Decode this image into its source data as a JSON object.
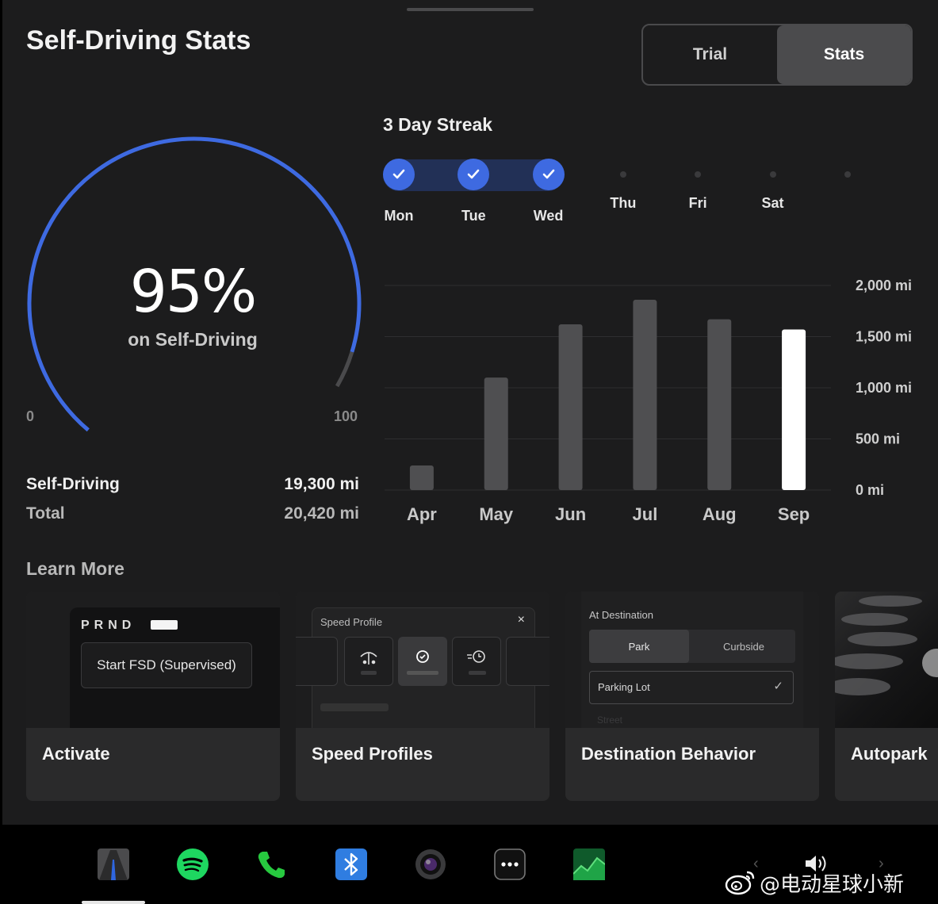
{
  "header": {
    "title": "Self-Driving Stats"
  },
  "tabs": [
    {
      "label": "Trial",
      "active": false
    },
    {
      "label": "Stats",
      "active": true
    }
  ],
  "gauge": {
    "percent_label": "95%",
    "percent_value": 95,
    "subtitle": "on Self-Driving",
    "min_label": "0",
    "max_label": "100",
    "accent_color": "#3e6ae1"
  },
  "summary": {
    "self_driving_label": "Self-Driving",
    "self_driving_value": "19,300 mi",
    "total_label": "Total",
    "total_value": "20,420 mi"
  },
  "streak": {
    "title": "3 Day Streak",
    "days": [
      {
        "label": "Mon",
        "done": true
      },
      {
        "label": "Tue",
        "done": true
      },
      {
        "label": "Wed",
        "done": true
      },
      {
        "label": "Thu",
        "done": false
      },
      {
        "label": "Fri",
        "done": false
      },
      {
        "label": "Sat",
        "done": false
      },
      {
        "label": "",
        "done": false
      }
    ]
  },
  "chart_data": {
    "type": "bar",
    "categories": [
      "Apr",
      "May",
      "Jun",
      "Jul",
      "Aug",
      "Sep"
    ],
    "values": [
      240,
      1100,
      1620,
      1860,
      1670,
      1570
    ],
    "highlight_index": 5,
    "ylim": [
      0,
      2000
    ],
    "yticks": [
      0,
      500,
      1000,
      1500,
      2000
    ],
    "ytick_labels": [
      "0 mi",
      "500 mi",
      "1,000 mi",
      "1,500 mi",
      "2,000 mi"
    ],
    "grid": true,
    "bar_color": "#4f4f51",
    "highlight_color": "#ffffff"
  },
  "learn_more": {
    "title": "Learn More",
    "cards": [
      {
        "caption": "Activate"
      },
      {
        "caption": "Speed Profiles"
      },
      {
        "caption": "Destination Behavior"
      },
      {
        "caption": "Autopark"
      }
    ],
    "activate_thumb": {
      "prnd": "PRND",
      "button": "Start FSD (Supervised)"
    },
    "speed_thumb": {
      "title": "Speed Profile",
      "close": "×"
    },
    "destination_thumb": {
      "title": "At Destination",
      "option_a": "Park",
      "option_b": "Curbside",
      "field": "Parking Lot",
      "next": "Street"
    }
  },
  "dock": {
    "items": [
      "navigation-icon",
      "spotify-icon",
      "phone-icon",
      "bluetooth-icon",
      "camera-icon",
      "more-icon",
      "stocks-icon"
    ]
  },
  "watermark": "@电动星球小新"
}
